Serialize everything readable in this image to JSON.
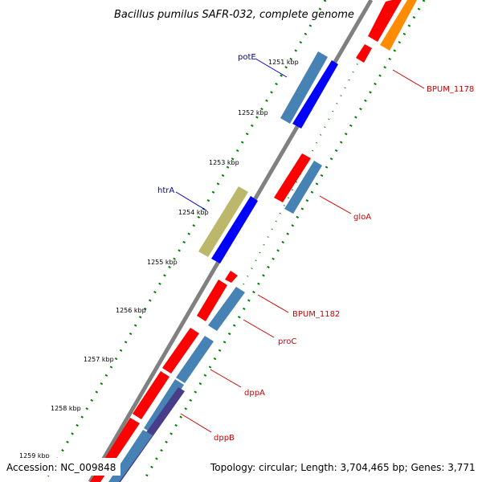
{
  "title": "Bacillus pumilus SAFR-032, complete genome",
  "footer": {
    "accession": "Accession: NC_009848",
    "summary": "Topology: circular; Length: 3,704,465 bp; Genes: 3,771"
  },
  "ticks": [
    "1251 kbp",
    "1252 kbp",
    "1253 kbp",
    "1254 kbp",
    "1255 kbp",
    "1256 kbp",
    "1257 kbp",
    "1258 kbp",
    "1259 kbp"
  ],
  "labels": {
    "potE": "potE",
    "htrA": "htrA",
    "BPUM_1178": "BPUM_1178",
    "gloA": "gloA",
    "BPUM_1182": "BPUM_1182",
    "proC": "proC",
    "dppA": "dppA",
    "dppB": "dppB"
  },
  "colors": {
    "cds": "#ff0000",
    "gene": "#4682b4",
    "forward": "#0000ff",
    "rrna": "#bdb76b",
    "orange": "#ff8c00",
    "navy": "#483d8b",
    "backbone": "#808080",
    "dots": "#008000",
    "label_blue": "#000099",
    "label_red": "#cc0000"
  }
}
